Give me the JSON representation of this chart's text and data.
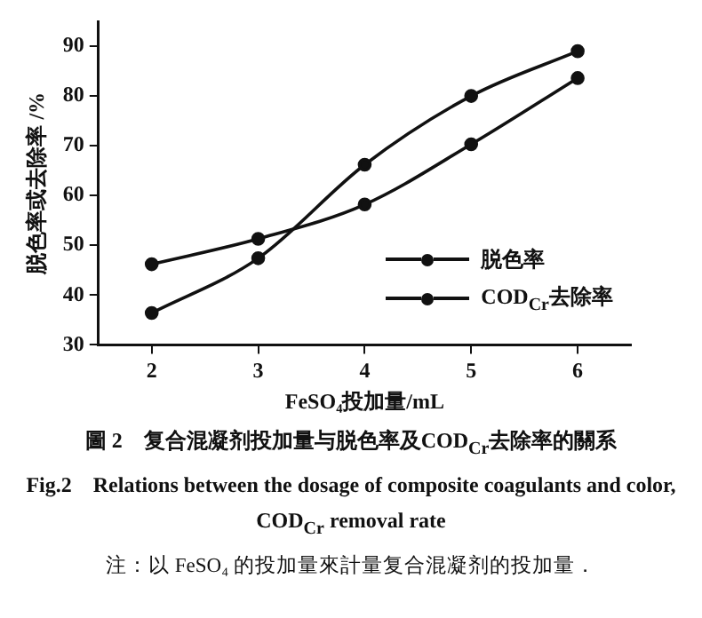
{
  "chart_data": {
    "type": "line",
    "xlabel": "FeSO₄投加量/mL",
    "ylabel": "脱色率或去除率 /%",
    "x": [
      2,
      3,
      4,
      5,
      6
    ],
    "series": [
      {
        "name": "脱色率",
        "color": "#111111",
        "values": [
          36.4,
          47.4,
          66.2,
          80,
          89
        ]
      },
      {
        "name": "COD$_{Cr}$去除率",
        "color": "#111111",
        "values": [
          46.2,
          51.3,
          58.2,
          70.3,
          83.6
        ]
      }
    ],
    "xlim": [
      1.5,
      6.5
    ],
    "xticks": [
      2,
      3,
      4,
      5,
      6
    ],
    "ylim": [
      30,
      95
    ],
    "yticks": [
      30,
      40,
      50,
      60,
      70,
      80,
      90
    ],
    "grid": false,
    "legend": "center right",
    "marker": "circle",
    "line_style": "solid",
    "annotations": [
      "圖 2　复合混凝剂投加量与脱色率及COD$_{Cr}$去除率的關系",
      "Fig.2　Relations between the dosage of composite coagulants and color, COD$_{Cr}$ removal rate",
      "注：以 FeSO₄ 的投加量來計量复合混凝剂的投加量．"
    ]
  }
}
